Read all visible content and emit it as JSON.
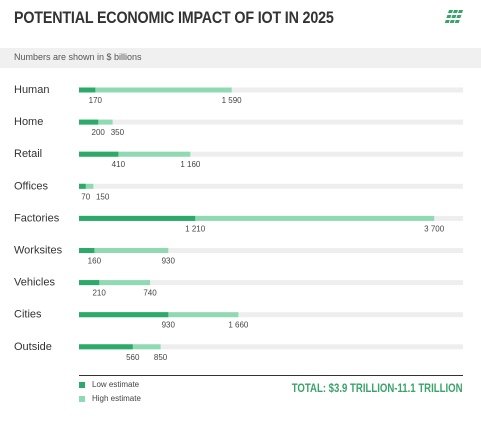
{
  "title": "POTENTIAL ECONOMIC IMPACT OF IOT IN 2025",
  "subtitle": "Numbers are shown in $ billions",
  "total": "TOTAL: $3.9 TRILLION-11.1 TRILLION",
  "legend": {
    "low_label": "Low estimate",
    "high_label": "High estimate"
  },
  "colors": {
    "low": "#2daa6a",
    "high": "#8fd9b3",
    "track": "#eeeeee",
    "total_text": "#3aa36a"
  },
  "logo_icon": "grid-logo-icon",
  "chart_data": {
    "type": "bar",
    "orientation": "horizontal",
    "title": "POTENTIAL ECONOMIC IMPACT OF IOT IN 2025",
    "subtitle": "Numbers are shown in $ billions",
    "xlim": [
      0,
      4000
    ],
    "categories": [
      "Human",
      "Home",
      "Retail",
      "Offices",
      "Factories",
      "Worksites",
      "Vehicles",
      "Cities",
      "Outside"
    ],
    "series": [
      {
        "name": "Low estimate",
        "values": [
          170,
          200,
          410,
          70,
          1210,
          160,
          210,
          930,
          560
        ]
      },
      {
        "name": "High estimate",
        "values": [
          1590,
          350,
          1160,
          150,
          3700,
          930,
          740,
          1660,
          850
        ]
      }
    ],
    "low_labels": [
      "170",
      "200",
      "410",
      "70",
      "1 210",
      "160",
      "210",
      "930",
      "560"
    ],
    "high_labels": [
      "1 590",
      "350",
      "1 160",
      "150",
      "3 700",
      "930",
      "740",
      "1 660",
      "850"
    ],
    "legend_position": "bottom-left",
    "grid": false
  }
}
